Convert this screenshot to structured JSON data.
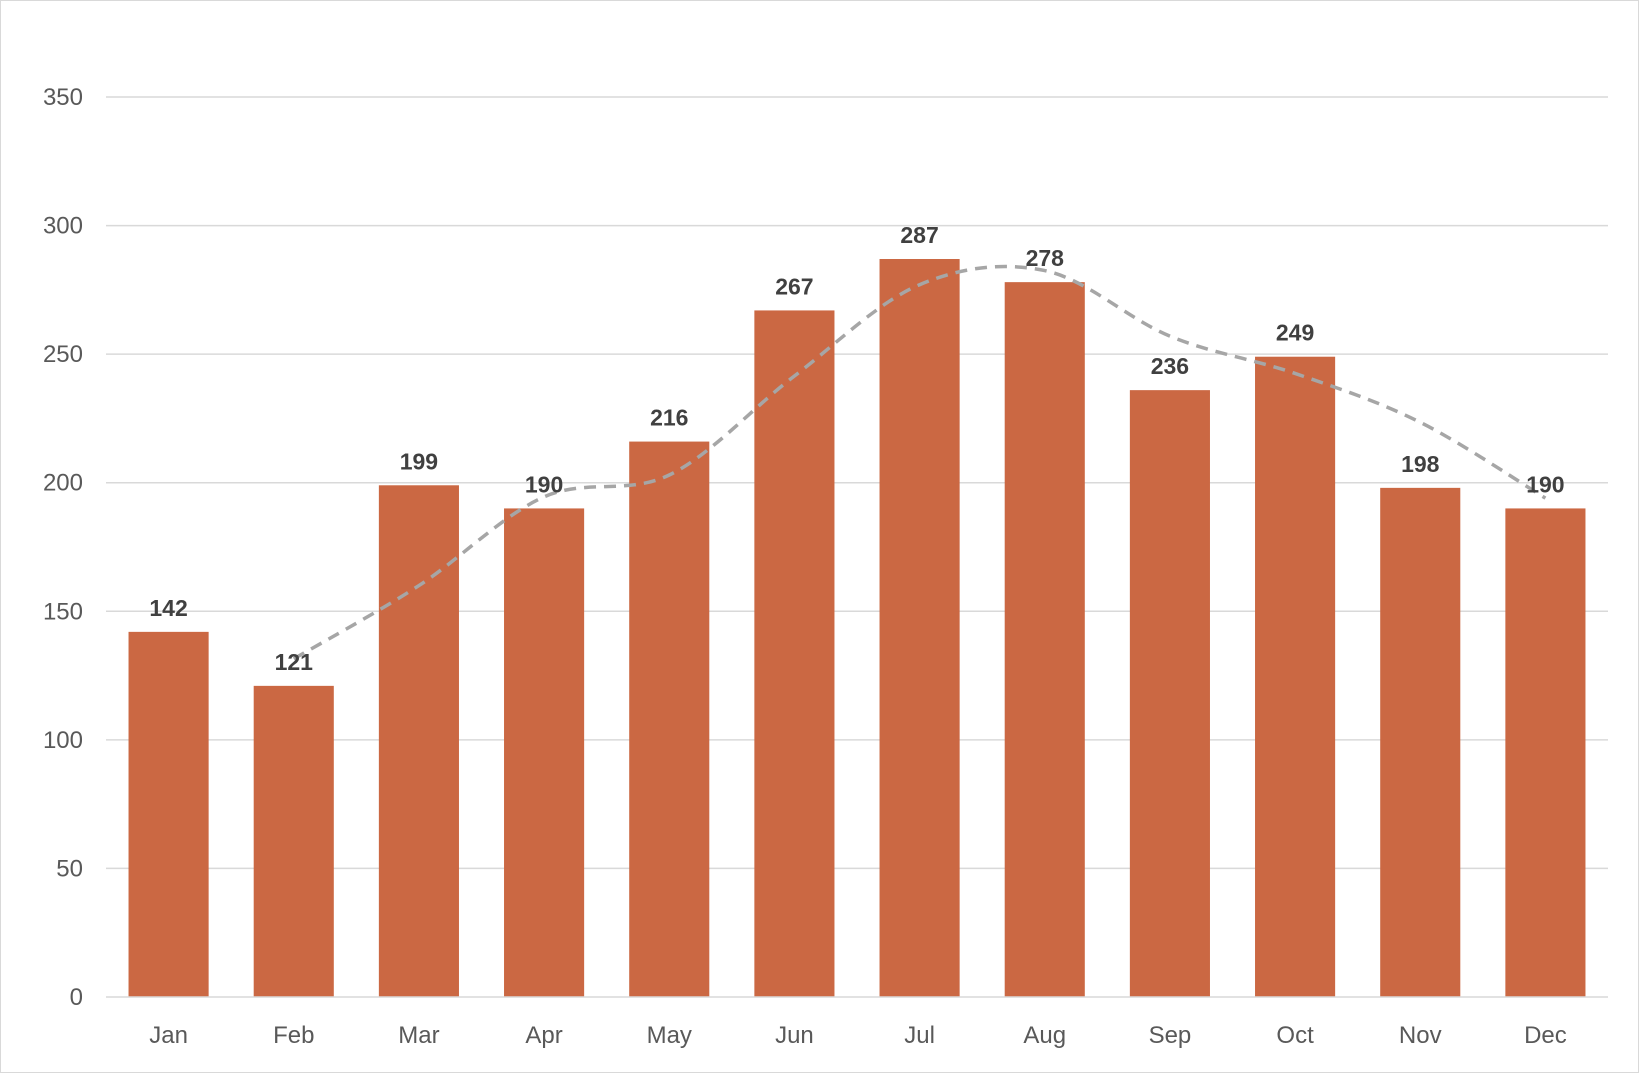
{
  "chart_data": {
    "type": "bar",
    "categories": [
      "Jan",
      "Feb",
      "Mar",
      "Apr",
      "May",
      "Jun",
      "Jul",
      "Aug",
      "Sep",
      "Oct",
      "Nov",
      "Dec"
    ],
    "series": [
      {
        "values": [
          142,
          121,
          199,
          190,
          216,
          267,
          287,
          278,
          236,
          249,
          198,
          190
        ],
        "color": "#cb6843",
        "data_labels": true
      }
    ],
    "trendline": {
      "style": "dashed",
      "color": "#a6a6a6",
      "kind": "moving-average",
      "period": 2
    },
    "title": "",
    "xlabel": "",
    "ylabel": "",
    "ylim": [
      0,
      350
    ],
    "yticks": [
      0,
      50,
      100,
      150,
      200,
      250,
      300,
      350
    ],
    "grid": true,
    "legend": "none"
  }
}
